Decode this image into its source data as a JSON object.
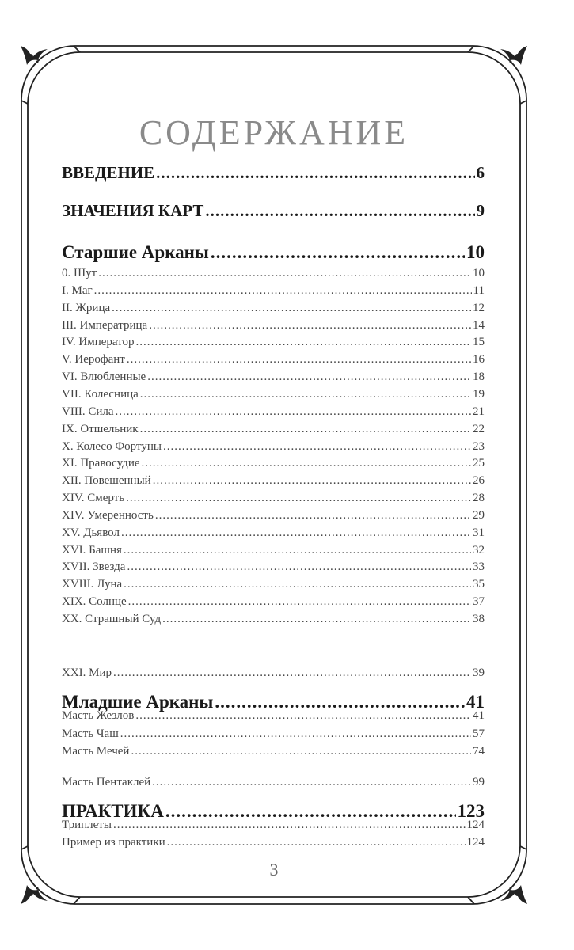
{
  "title": "СОДЕРЖАНИЕ",
  "page_number": "3",
  "entries": [
    {
      "label": "ВВЕДЕНИЕ",
      "page": "6",
      "level": "h1"
    },
    {
      "label": "ЗНАЧЕНИЯ КАРТ",
      "page": "9",
      "level": "h1"
    },
    {
      "label": "Старшие Арканы",
      "page": "10",
      "level": "h2"
    },
    {
      "label": "0. Шут",
      "page": "10",
      "level": "sub"
    },
    {
      "label": "I. Маг",
      "page": "11",
      "level": "sub"
    },
    {
      "label": "II. Жрица",
      "page": "12",
      "level": "sub"
    },
    {
      "label": "III. Императрица",
      "page": "14",
      "level": "sub"
    },
    {
      "label": "IV. Император",
      "page": "15",
      "level": "sub"
    },
    {
      "label": "V. Иерофант",
      "page": "16",
      "level": "sub"
    },
    {
      "label": "VI. Влюбленные",
      "page": "18",
      "level": "sub"
    },
    {
      "label": "VII. Колесница",
      "page": "19",
      "level": "sub"
    },
    {
      "label": "VIII. Сила",
      "page": "21",
      "level": "sub"
    },
    {
      "label": "IX. Отшельник",
      "page": "22",
      "level": "sub"
    },
    {
      "label": "X. Колесо Фортуны",
      "page": "23",
      "level": "sub"
    },
    {
      "label": "XI. Правосудие",
      "page": "25",
      "level": "sub"
    },
    {
      "label": "XII. Повешенный",
      "page": "26",
      "level": "sub"
    },
    {
      "label": "XIV. Смерть",
      "page": "28",
      "level": "sub"
    },
    {
      "label": "XIV. Умеренность",
      "page": "29",
      "level": "sub"
    },
    {
      "label": "XV. Дьявол",
      "page": "31",
      "level": "sub"
    },
    {
      "label": "XVI. Башня",
      "page": "32",
      "level": "sub"
    },
    {
      "label": "XVII. Звезда",
      "page": "33",
      "level": "sub"
    },
    {
      "label": "XVIII. Луна",
      "page": "35",
      "level": "sub"
    },
    {
      "label": "XIX. Солнце",
      "page": "37",
      "level": "sub"
    },
    {
      "label": "XX. Страшный Суд",
      "page": "38",
      "level": "sub"
    },
    {
      "label": "XXI. Мир",
      "page": "39",
      "level": "sub"
    },
    {
      "label": "Младшие Арканы",
      "page": "41",
      "level": "h2"
    },
    {
      "label": "Масть Жезлов",
      "page": "41",
      "level": "sub"
    },
    {
      "label": "Масть Чаш",
      "page": "57",
      "level": "sub"
    },
    {
      "label": "Масть Мечей",
      "page": "74",
      "level": "sub"
    },
    {
      "label": "Масть Пентаклей",
      "page": "99",
      "level": "sub"
    },
    {
      "label": "ПРАКТИКА",
      "page": "123",
      "level": "h2"
    },
    {
      "label": "Триплеты",
      "page": "124",
      "level": "sub"
    },
    {
      "label": "Пример из практики",
      "page": "124",
      "level": "sub"
    }
  ]
}
